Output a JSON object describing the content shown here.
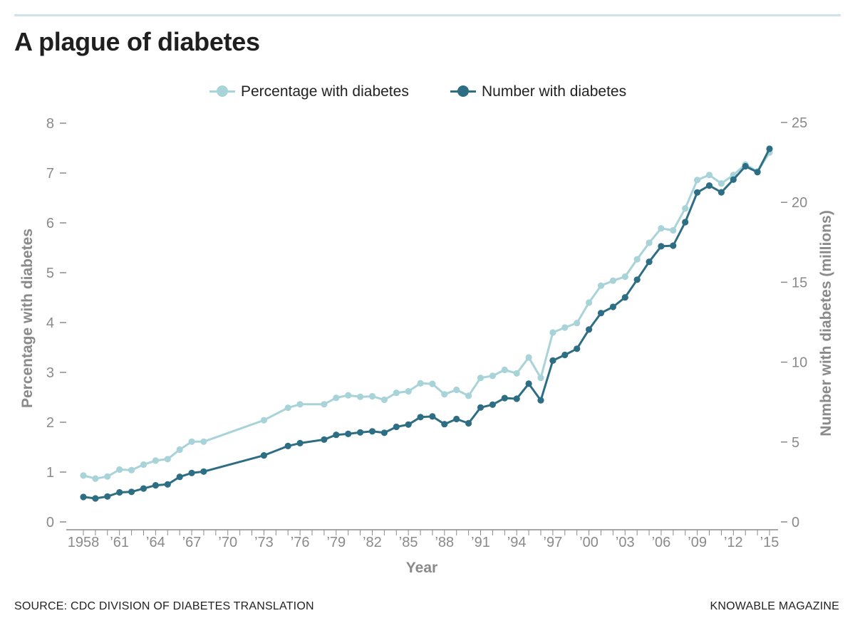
{
  "header": {
    "title": "A plague of diabetes"
  },
  "footer": {
    "source": "SOURCE: CDC DIVISION OF DIABETES TRANSLATION",
    "publisher": "KNOWABLE MAGAZINE"
  },
  "colors": {
    "percentage": "#a8d3d8",
    "number": "#2e6e84",
    "axis": "#8a8a8a",
    "rule": "#cfe3ea"
  },
  "chart_data": {
    "type": "line",
    "title": "A plague of diabetes",
    "xlabel": "Year",
    "ylabel_left": "Percentage with diabetes",
    "ylabel_right": "Number with diabetes (millions)",
    "xlim": [
      1958,
      2015
    ],
    "ylim_left": [
      0,
      8
    ],
    "ylim_right": [
      0,
      25
    ],
    "yticks_left": [
      "0",
      "1",
      "2",
      "3",
      "4",
      "5",
      "6",
      "7",
      "8"
    ],
    "yticks_right": [
      "0",
      "5",
      "10",
      "15",
      "20",
      "25"
    ],
    "x_tick_labels": [
      "1958",
      "’61",
      "’64",
      "’67",
      "’70",
      "’73",
      "’76",
      "’79",
      "’82",
      "’85",
      "’88",
      "’91",
      "’94",
      "’97",
      "’00",
      "’03",
      "’06",
      "’09",
      "’12",
      "’15"
    ],
    "legend_position": "top-center",
    "series": [
      {
        "name": "Percentage with diabetes",
        "axis": "left",
        "x": [
          1958,
          1959,
          1960,
          1961,
          1962,
          1963,
          1964,
          1965,
          1966,
          1967,
          1968,
          1973,
          1975,
          1976,
          1978,
          1979,
          1980,
          1981,
          1982,
          1983,
          1984,
          1985,
          1986,
          1987,
          1988,
          1989,
          1990,
          1991,
          1992,
          1993,
          1994,
          1995,
          1996,
          1997,
          1998,
          1999,
          2000,
          2001,
          2002,
          2003,
          2004,
          2005,
          2006,
          2007,
          2008,
          2009,
          2010,
          2011,
          2012,
          2013,
          2014,
          2015
        ],
        "values": [
          0.93,
          0.87,
          0.91,
          1.05,
          1.04,
          1.15,
          1.23,
          1.26,
          1.45,
          1.61,
          1.61,
          2.04,
          2.29,
          2.36,
          2.36,
          2.49,
          2.54,
          2.51,
          2.52,
          2.45,
          2.59,
          2.62,
          2.78,
          2.77,
          2.56,
          2.65,
          2.53,
          2.89,
          2.93,
          3.05,
          2.98,
          3.3,
          2.89,
          3.8,
          3.9,
          3.99,
          4.4,
          4.74,
          4.84,
          4.92,
          5.27,
          5.6,
          5.89,
          5.85,
          6.29,
          6.86,
          6.96,
          6.79,
          6.96,
          7.17,
          7.03,
          7.41
        ]
      },
      {
        "name": "Number with diabetes",
        "axis": "right",
        "x": [
          1958,
          1959,
          1960,
          1961,
          1962,
          1963,
          1964,
          1965,
          1966,
          1967,
          1968,
          1973,
          1975,
          1976,
          1978,
          1979,
          1980,
          1981,
          1982,
          1983,
          1984,
          1985,
          1986,
          1987,
          1988,
          1989,
          1990,
          1991,
          1992,
          1993,
          1994,
          1995,
          1996,
          1997,
          1998,
          1999,
          2000,
          2001,
          2002,
          2003,
          2004,
          2005,
          2006,
          2007,
          2008,
          2009,
          2010,
          2011,
          2012,
          2013,
          2014,
          2015
        ],
        "values": [
          1.56,
          1.47,
          1.59,
          1.85,
          1.88,
          2.09,
          2.29,
          2.35,
          2.82,
          3.06,
          3.15,
          4.16,
          4.75,
          4.93,
          5.15,
          5.45,
          5.51,
          5.6,
          5.67,
          5.58,
          5.95,
          6.09,
          6.56,
          6.6,
          6.12,
          6.44,
          6.17,
          7.16,
          7.34,
          7.75,
          7.71,
          8.65,
          7.61,
          10.1,
          10.45,
          10.84,
          12.04,
          13.07,
          13.46,
          14.05,
          15.16,
          16.28,
          17.25,
          17.29,
          18.76,
          20.62,
          21.05,
          20.63,
          21.42,
          22.26,
          21.89,
          23.35
        ]
      }
    ]
  }
}
